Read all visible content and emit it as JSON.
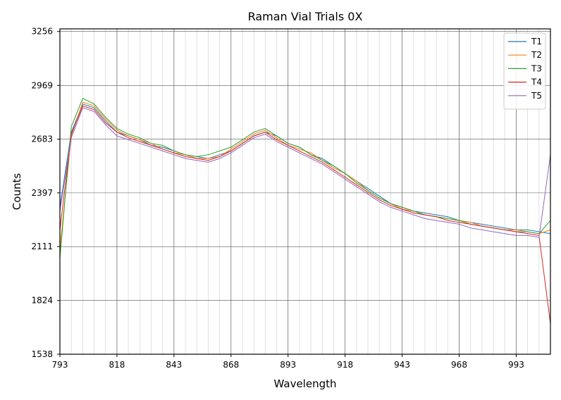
{
  "chart_data": {
    "type": "line",
    "title": "Raman Vial Trials  0X",
    "xlabel": "Wavelength",
    "ylabel": "Counts",
    "xlim": [
      793,
      1008
    ],
    "ylim": [
      1538,
      3270
    ],
    "x_ticks": [
      793,
      818,
      843,
      868,
      893,
      918,
      943,
      968,
      993
    ],
    "y_ticks": [
      1538,
      1824,
      2111,
      2397,
      2683,
      2969,
      3256
    ],
    "grid": true,
    "minor_grid_x": true,
    "legend_position": "top-right",
    "series": [
      {
        "name": "T1",
        "color": "#1f77b4",
        "x": [
          793,
          798,
          803,
          808,
          813,
          818,
          823,
          828,
          833,
          838,
          843,
          848,
          853,
          858,
          863,
          868,
          873,
          878,
          883,
          888,
          893,
          898,
          903,
          908,
          913,
          918,
          923,
          928,
          933,
          938,
          943,
          948,
          953,
          958,
          963,
          968,
          973,
          978,
          983,
          988,
          993,
          998,
          1003,
          1008
        ],
        "y": [
          2320,
          2720,
          2870,
          2850,
          2780,
          2720,
          2700,
          2680,
          2650,
          2640,
          2620,
          2600,
          2590,
          2580,
          2600,
          2620,
          2660,
          2700,
          2720,
          2700,
          2660,
          2640,
          2600,
          2580,
          2540,
          2500,
          2460,
          2420,
          2380,
          2340,
          2320,
          2300,
          2290,
          2280,
          2270,
          2250,
          2240,
          2230,
          2220,
          2210,
          2200,
          2200,
          2190,
          2180
        ]
      },
      {
        "name": "T2",
        "color": "#ff7f0e",
        "x": [
          793,
          798,
          803,
          808,
          813,
          818,
          823,
          828,
          833,
          838,
          843,
          848,
          853,
          858,
          863,
          868,
          873,
          878,
          883,
          888,
          893,
          898,
          903,
          908,
          913,
          918,
          923,
          928,
          933,
          938,
          943,
          948,
          953,
          958,
          963,
          968,
          973,
          978,
          983,
          988,
          993,
          998,
          1003,
          1008
        ],
        "y": [
          2100,
          2700,
          2880,
          2860,
          2790,
          2730,
          2700,
          2680,
          2660,
          2630,
          2610,
          2600,
          2580,
          2580,
          2590,
          2630,
          2670,
          2710,
          2730,
          2690,
          2650,
          2630,
          2610,
          2570,
          2530,
          2500,
          2460,
          2410,
          2370,
          2340,
          2310,
          2300,
          2280,
          2270,
          2260,
          2250,
          2240,
          2220,
          2210,
          2200,
          2200,
          2190,
          2180,
          2200
        ]
      },
      {
        "name": "T3",
        "color": "#2ca02c",
        "x": [
          793,
          798,
          803,
          808,
          813,
          818,
          823,
          828,
          833,
          838,
          843,
          848,
          853,
          858,
          863,
          868,
          873,
          878,
          883,
          888,
          893,
          898,
          903,
          908,
          913,
          918,
          923,
          928,
          933,
          938,
          943,
          948,
          953,
          958,
          963,
          968,
          973,
          978,
          983,
          988,
          993,
          998,
          1003,
          1008
        ],
        "y": [
          2050,
          2750,
          2900,
          2870,
          2800,
          2740,
          2710,
          2690,
          2660,
          2650,
          2620,
          2600,
          2590,
          2600,
          2620,
          2640,
          2680,
          2720,
          2740,
          2700,
          2660,
          2640,
          2600,
          2570,
          2540,
          2500,
          2450,
          2410,
          2370,
          2340,
          2320,
          2300,
          2280,
          2270,
          2260,
          2250,
          2230,
          2220,
          2210,
          2200,
          2190,
          2190,
          2180,
          2250
        ]
      },
      {
        "name": "T4",
        "color": "#d62728",
        "x": [
          793,
          798,
          803,
          808,
          813,
          818,
          823,
          828,
          833,
          838,
          843,
          848,
          853,
          858,
          863,
          868,
          873,
          878,
          883,
          888,
          893,
          898,
          903,
          908,
          913,
          918,
          923,
          928,
          933,
          938,
          943,
          948,
          953,
          958,
          963,
          968,
          973,
          978,
          983,
          988,
          993,
          998,
          1003,
          1008
        ],
        "y": [
          2200,
          2710,
          2860,
          2840,
          2770,
          2720,
          2690,
          2670,
          2650,
          2630,
          2610,
          2590,
          2580,
          2570,
          2590,
          2620,
          2660,
          2700,
          2720,
          2680,
          2650,
          2620,
          2590,
          2560,
          2520,
          2480,
          2440,
          2400,
          2360,
          2330,
          2310,
          2290,
          2280,
          2270,
          2250,
          2240,
          2230,
          2220,
          2210,
          2200,
          2190,
          2180,
          2170,
          1700
        ]
      },
      {
        "name": "T5",
        "color": "#9467bd",
        "x": [
          793,
          798,
          803,
          808,
          813,
          818,
          823,
          828,
          833,
          838,
          843,
          848,
          853,
          858,
          863,
          868,
          873,
          878,
          883,
          888,
          893,
          898,
          903,
          908,
          913,
          918,
          923,
          928,
          933,
          938,
          943,
          948,
          953,
          958,
          963,
          968,
          973,
          978,
          983,
          988,
          993,
          998,
          1003,
          1008
        ],
        "y": [
          2300,
          2690,
          2850,
          2830,
          2760,
          2700,
          2680,
          2660,
          2640,
          2620,
          2600,
          2580,
          2570,
          2560,
          2580,
          2610,
          2650,
          2690,
          2710,
          2670,
          2640,
          2610,
          2580,
          2550,
          2510,
          2470,
          2430,
          2390,
          2350,
          2320,
          2300,
          2280,
          2260,
          2250,
          2240,
          2230,
          2210,
          2200,
          2190,
          2180,
          2170,
          2170,
          2160,
          2600
        ]
      }
    ]
  }
}
